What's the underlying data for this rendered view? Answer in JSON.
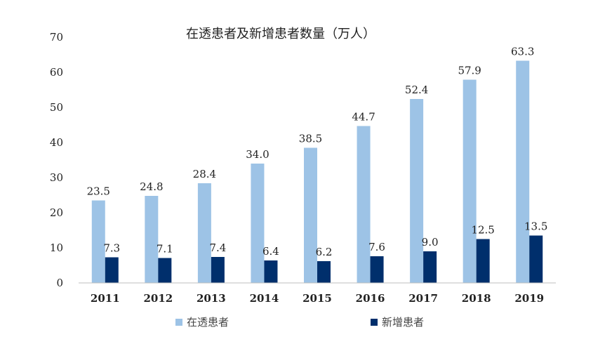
{
  "chart_data": {
    "type": "bar",
    "title": "在透患者及新增患者数量（万人）",
    "categories": [
      "2011",
      "2012",
      "2013",
      "2014",
      "2015",
      "2016",
      "2017",
      "2018",
      "2019"
    ],
    "series": [
      {
        "name": "在透患者",
        "values": [
          23.5,
          24.8,
          28.4,
          34.0,
          38.5,
          44.7,
          52.4,
          57.9,
          63.3
        ],
        "color": "#9dc3e6"
      },
      {
        "name": "新增患者",
        "values": [
          7.3,
          7.1,
          7.4,
          6.4,
          6.2,
          7.6,
          9.0,
          12.5,
          13.5
        ],
        "color": "#002f6c"
      }
    ],
    "ylim": [
      0,
      70
    ],
    "yticks": [
      0,
      10,
      20,
      30,
      40,
      50,
      60,
      70
    ],
    "grid": false,
    "legend_position": "bottom"
  }
}
